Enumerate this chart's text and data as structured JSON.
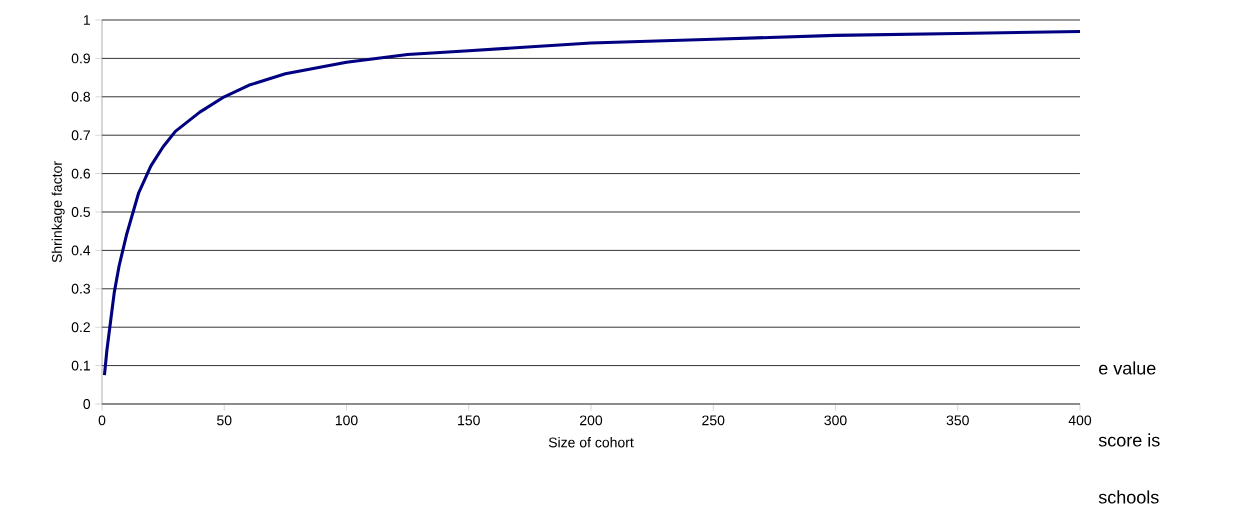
{
  "chart_data": {
    "type": "line",
    "xlabel": "Size of cohort",
    "ylabel": "Shrinkage factor",
    "x": [
      1,
      2,
      3,
      5,
      7,
      10,
      15,
      20,
      25,
      30,
      40,
      50,
      60,
      75,
      100,
      125,
      150,
      200,
      250,
      300,
      350,
      400
    ],
    "series": [
      {
        "color": "#000080",
        "values": [
          0.075,
          0.14,
          0.19,
          0.29,
          0.36,
          0.44,
          0.55,
          0.62,
          0.67,
          0.71,
          0.76,
          0.8,
          0.83,
          0.86,
          0.89,
          0.91,
          0.92,
          0.94,
          0.95,
          0.96,
          0.965,
          0.97
        ]
      }
    ],
    "xlim": [
      0,
      400
    ],
    "ylim": [
      0,
      1
    ],
    "xticks": [
      0,
      50,
      100,
      150,
      200,
      250,
      300,
      350,
      400
    ],
    "yticks": [
      0,
      0.1,
      0.2,
      0.3,
      0.4,
      0.5,
      0.6,
      0.7,
      0.8,
      0.9,
      1
    ],
    "grid": "y",
    "marker": "none",
    "line_style": "solid",
    "annotations": [
      "e value",
      "score is",
      "schools"
    ]
  }
}
